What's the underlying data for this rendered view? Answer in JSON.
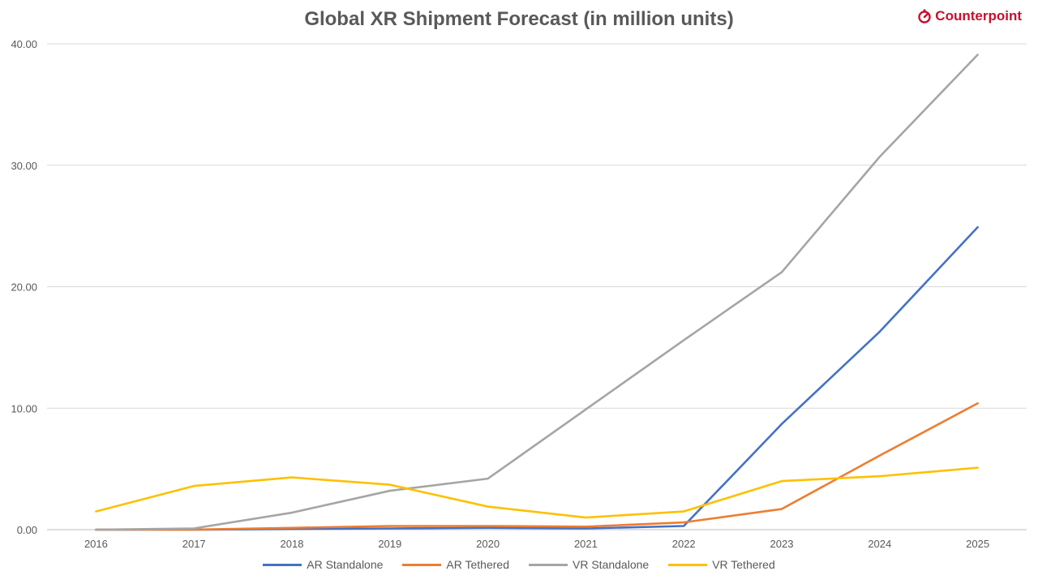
{
  "chart_data": {
    "type": "line",
    "title": "Global XR Shipment Forecast (in million units)",
    "brand": "Counterpoint",
    "categories": [
      "2016",
      "2017",
      "2018",
      "2019",
      "2020",
      "2021",
      "2022",
      "2023",
      "2024",
      "2025"
    ],
    "ylim": [
      0,
      40
    ],
    "yticks": [
      0,
      10,
      20,
      30,
      40
    ],
    "ytick_labels": [
      "0.00",
      "10.00",
      "20.00",
      "30.00",
      "40.00"
    ],
    "grid": true,
    "legend_position": "bottom",
    "series": [
      {
        "name": "AR Standalone",
        "color": "#4472C4",
        "values": [
          0,
          0,
          0.05,
          0.1,
          0.15,
          0.1,
          0.3,
          8.7,
          16.3,
          24.9
        ]
      },
      {
        "name": "AR Tethered",
        "color": "#ED7D31",
        "values": [
          0,
          0,
          0.15,
          0.3,
          0.3,
          0.25,
          0.6,
          1.7,
          6.1,
          10.4
        ]
      },
      {
        "name": "VR Standalone",
        "color": "#A5A5A5",
        "values": [
          0,
          0.1,
          1.4,
          3.2,
          4.2,
          9.9,
          15.6,
          21.2,
          30.7,
          39.1
        ]
      },
      {
        "name": "VR Tethered",
        "color": "#FFC000",
        "values": [
          1.5,
          3.6,
          4.3,
          3.7,
          1.9,
          1.0,
          1.5,
          4.0,
          4.4,
          5.1
        ]
      }
    ]
  }
}
